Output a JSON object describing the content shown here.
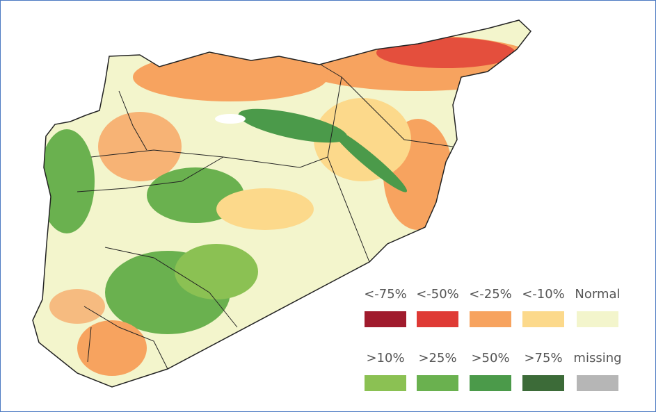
{
  "legend": {
    "rows": [
      [
        {
          "label": "<-75%",
          "color": "#a01b2d"
        },
        {
          "label": "<-50%",
          "color": "#df3a35"
        },
        {
          "label": "<-25%",
          "color": "#f7a35f"
        },
        {
          "label": "<-10%",
          "color": "#fcd98b"
        },
        {
          "label": "Normal",
          "color": "#f3f5cc"
        }
      ],
      [
        {
          "label": ">10%",
          "color": "#8bc153"
        },
        {
          "label": ">25%",
          "color": "#6ab14f"
        },
        {
          "label": ">50%",
          "color": "#4b9a4a"
        },
        {
          "label": ">75%",
          "color": "#3c6b38"
        },
        {
          "label": "missing",
          "color": "#b6b6b6"
        }
      ]
    ]
  }
}
